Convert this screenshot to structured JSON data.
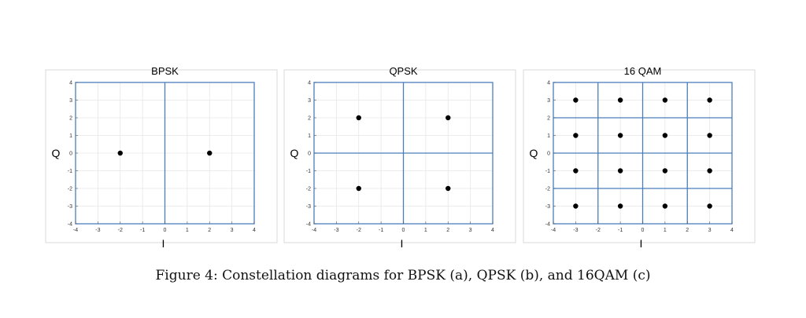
{
  "figure": {
    "caption": "Figure 4: Constellation diagrams for BPSK (a), QPSK (b), and 16QAM (c)"
  },
  "chart_data": [
    {
      "type": "scatter",
      "title": "BPSK",
      "xlabel": "I",
      "ylabel": "Q",
      "xlim": [
        -4,
        4
      ],
      "ylim": [
        -4,
        4
      ],
      "xticks": [
        -4,
        -3,
        -2,
        -1,
        0,
        1,
        2,
        3,
        4
      ],
      "yticks": [
        -4,
        -3,
        -2,
        -1,
        0,
        1,
        2,
        3,
        4
      ],
      "grid": true,
      "decision_lines": {
        "x": [
          0
        ],
        "y": []
      },
      "points": [
        {
          "x": -2,
          "y": 0
        },
        {
          "x": 2,
          "y": 0
        }
      ]
    },
    {
      "type": "scatter",
      "title": "QPSK",
      "xlabel": "I",
      "ylabel": "Q",
      "xlim": [
        -4,
        4
      ],
      "ylim": [
        -4,
        4
      ],
      "xticks": [
        -4,
        -3,
        -2,
        -1,
        0,
        1,
        2,
        3,
        4
      ],
      "yticks": [
        -4,
        -3,
        -2,
        -1,
        0,
        1,
        2,
        3,
        4
      ],
      "grid": true,
      "decision_lines": {
        "x": [
          0
        ],
        "y": [
          0
        ]
      },
      "points": [
        {
          "x": -2,
          "y": 2
        },
        {
          "x": 2,
          "y": 2
        },
        {
          "x": -2,
          "y": -2
        },
        {
          "x": 2,
          "y": -2
        }
      ]
    },
    {
      "type": "scatter",
      "title": "16 QAM",
      "xlabel": "I",
      "ylabel": "Q",
      "xlim": [
        -4,
        4
      ],
      "ylim": [
        -4,
        4
      ],
      "xticks": [
        -4,
        -3,
        -2,
        -1,
        0,
        1,
        2,
        3,
        4
      ],
      "yticks": [
        -4,
        -3,
        -2,
        -1,
        0,
        1,
        2,
        3,
        4
      ],
      "grid": true,
      "decision_lines": {
        "x": [
          -2,
          0,
          2
        ],
        "y": [
          -2,
          0,
          2
        ]
      },
      "points": [
        {
          "x": -3,
          "y": 3
        },
        {
          "x": -1,
          "y": 3
        },
        {
          "x": 1,
          "y": 3
        },
        {
          "x": 3,
          "y": 3
        },
        {
          "x": -3,
          "y": 1
        },
        {
          "x": -1,
          "y": 1
        },
        {
          "x": 1,
          "y": 1
        },
        {
          "x": 3,
          "y": 1
        },
        {
          "x": -3,
          "y": -1
        },
        {
          "x": -1,
          "y": -1
        },
        {
          "x": 1,
          "y": -1
        },
        {
          "x": 3,
          "y": -1
        },
        {
          "x": -3,
          "y": -3
        },
        {
          "x": -1,
          "y": -3
        },
        {
          "x": 1,
          "y": -3
        },
        {
          "x": 3,
          "y": -3
        }
      ]
    }
  ],
  "colors": {
    "axes_frame": "#4a7ebb",
    "decision_line": "#4a7ebb",
    "grid": "#e6e6e6",
    "point": "#000000",
    "panel_border": "#d9d9d9"
  }
}
